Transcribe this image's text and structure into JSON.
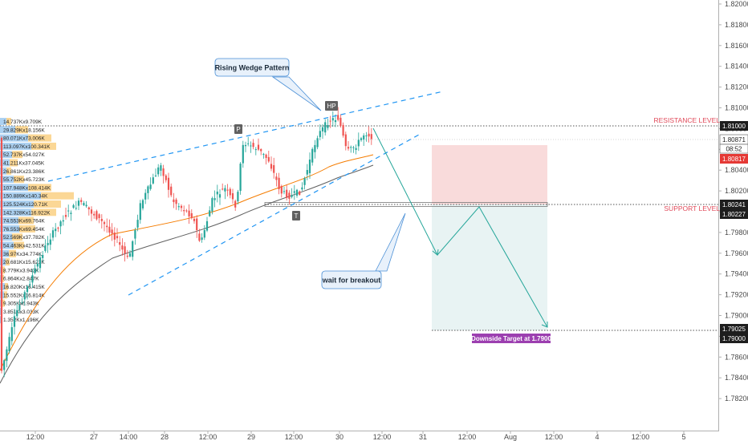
{
  "chart_data": {
    "type": "candlestick",
    "price_scale": {
      "ticks": [
        "1.82000",
        "1.81800",
        "1.81600",
        "1.81400",
        "1.81200",
        "1.81000",
        "1.80800",
        "1.80600",
        "1.80400",
        "1.80200",
        "1.80000",
        "1.79800",
        "1.79600",
        "1.79400",
        "1.79200",
        "1.79000",
        "1.78800",
        "1.78600",
        "1.78400",
        "1.78200"
      ],
      "range": [
        1.7815,
        1.8218
      ]
    },
    "time_axis": [
      "12:00",
      "27",
      "14:00",
      "28",
      "12:00",
      "29",
      "12:00",
      "30",
      "12:00",
      "31",
      "12:00",
      "Aug",
      "12:00",
      "4",
      "12:00",
      "5"
    ],
    "markers": {
      "resistance_price": 1.81,
      "support_price": 1.80241,
      "target_price": 1.79,
      "stop_top_price": 1.8086
    },
    "price_tags": {
      "resistance": "1.81000",
      "last": "1.80871",
      "countdown": "08:52",
      "red": "1.80817",
      "support_top": "1.80241",
      "support_bottom": "1.80227",
      "target_top": "1.79025",
      "target_bottom": "1.79000"
    },
    "labels": {
      "resistance": "RESISTANCE LEVEL",
      "support": "SUPPORT LEVEL",
      "target": "Downside Target at 1.7900",
      "wedge": "Rising Wedge Pattern",
      "breakout": "wait for breakout",
      "p": "P",
      "hp": "HP",
      "t": "T"
    },
    "volume_profile": [
      "14.737Kx9.709K",
      "29.829Kx18.156K",
      "80.071Kx73.006K",
      "113.097Kx100.341K",
      "52.737Kx54.027K",
      "41.211Kx37.045K",
      "26.861Kx23.386K",
      "55.752Kx45.723K",
      "107.948Kx108.414K",
      "150.889Kx140.34K",
      "125.524Kx120.71K",
      "142.328Kx116.922K",
      "74.553Kx69.764K",
      "76.553Kx69.454K",
      "52.569Kx37.782K",
      "54.463Kx42.531K",
      "36.97Kx34.774K",
      "20.681Kx15.623K",
      "8.779Kx3.943K",
      "6.864Kx2.847K",
      "16.820Kx16.415K",
      "15.552Kx16.814K",
      "9.305Kx6.943K",
      "3.851Kx3.033K",
      "1.352Kx1.196K"
    ],
    "colors": {
      "up": "#26a69a",
      "down": "#ef5350",
      "ema_fast": "#f57c00",
      "ema_slow": "#616161",
      "trendline": "#2196f3",
      "path": "#26a69a",
      "stop_zone": "#f8d7d7",
      "target_zone": "#e6f2f2",
      "target_label_bg": "#9c3fb0"
    }
  }
}
